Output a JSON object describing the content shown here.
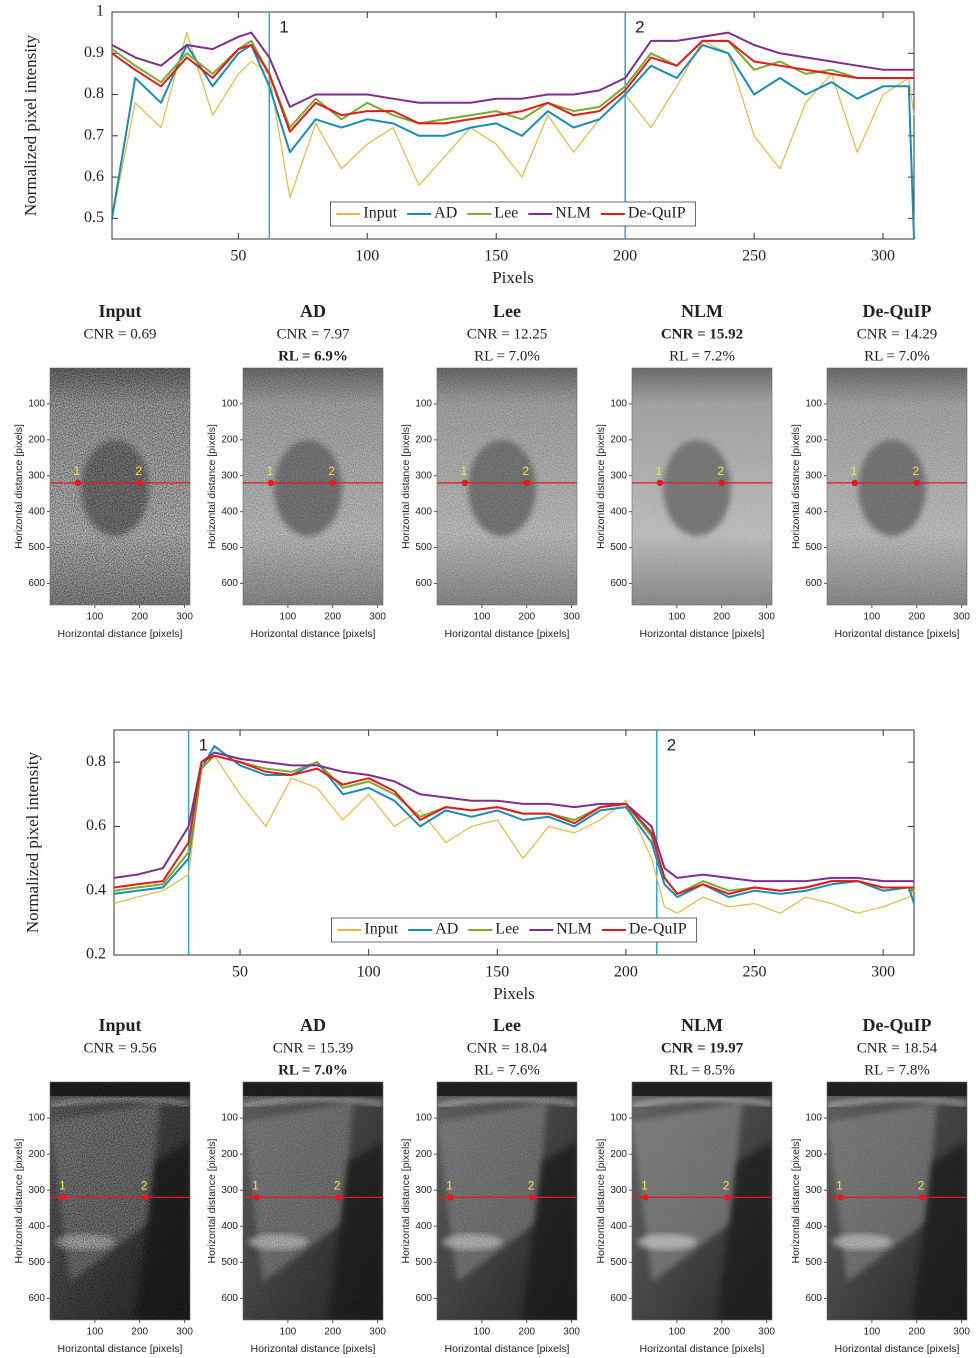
{
  "chart_data": [
    {
      "type": "line",
      "ylabel": "Normalized pixel intensity",
      "xlabel": "Pixels",
      "x": [
        1,
        10,
        20,
        30,
        40,
        50,
        55,
        62,
        70,
        80,
        90,
        100,
        110,
        120,
        130,
        140,
        150,
        160,
        170,
        180,
        190,
        200,
        210,
        220,
        230,
        240,
        250,
        260,
        270,
        280,
        290,
        300,
        310,
        312
      ],
      "series": [
        {
          "name": "Input",
          "color": "#e3b943",
          "values": [
            0.5,
            0.78,
            0.72,
            0.95,
            0.75,
            0.85,
            0.88,
            0.85,
            0.55,
            0.73,
            0.62,
            0.68,
            0.72,
            0.58,
            0.65,
            0.72,
            0.68,
            0.6,
            0.75,
            0.66,
            0.74,
            0.8,
            0.72,
            0.82,
            0.93,
            0.9,
            0.7,
            0.62,
            0.78,
            0.85,
            0.66,
            0.8,
            0.84,
            0.75
          ]
        },
        {
          "name": "AD",
          "color": "#1a8cb5",
          "values": [
            0.5,
            0.84,
            0.78,
            0.92,
            0.82,
            0.9,
            0.92,
            0.82,
            0.66,
            0.74,
            0.72,
            0.74,
            0.73,
            0.7,
            0.7,
            0.72,
            0.73,
            0.7,
            0.76,
            0.72,
            0.74,
            0.8,
            0.87,
            0.84,
            0.92,
            0.9,
            0.8,
            0.84,
            0.8,
            0.83,
            0.79,
            0.82,
            0.82,
            0.45
          ]
        },
        {
          "name": "Lee",
          "color": "#77ac30",
          "values": [
            0.91,
            0.87,
            0.83,
            0.9,
            0.85,
            0.91,
            0.93,
            0.85,
            0.72,
            0.79,
            0.74,
            0.78,
            0.75,
            0.73,
            0.74,
            0.75,
            0.76,
            0.74,
            0.78,
            0.76,
            0.77,
            0.82,
            0.9,
            0.87,
            0.93,
            0.93,
            0.86,
            0.88,
            0.85,
            0.86,
            0.84,
            0.84,
            0.84,
            0.84
          ]
        },
        {
          "name": "NLM",
          "color": "#7e2f8e",
          "values": [
            0.92,
            0.89,
            0.87,
            0.92,
            0.91,
            0.94,
            0.95,
            0.89,
            0.77,
            0.8,
            0.8,
            0.8,
            0.79,
            0.78,
            0.78,
            0.78,
            0.79,
            0.79,
            0.8,
            0.8,
            0.81,
            0.84,
            0.93,
            0.93,
            0.94,
            0.95,
            0.92,
            0.9,
            0.89,
            0.88,
            0.87,
            0.86,
            0.86,
            0.86
          ]
        },
        {
          "name": "De-QuIP",
          "color": "#e41a1c",
          "values": [
            0.9,
            0.86,
            0.82,
            0.89,
            0.84,
            0.91,
            0.92,
            0.85,
            0.71,
            0.78,
            0.75,
            0.76,
            0.76,
            0.73,
            0.73,
            0.74,
            0.75,
            0.76,
            0.78,
            0.75,
            0.76,
            0.81,
            0.89,
            0.87,
            0.93,
            0.93,
            0.88,
            0.87,
            0.86,
            0.85,
            0.84,
            0.84,
            0.84,
            0.84
          ]
        }
      ],
      "xlim": [
        1,
        312
      ],
      "xticks": [
        50,
        100,
        150,
        200,
        250,
        300
      ],
      "ylim": [
        0.45,
        1
      ],
      "yticks": [
        0.5,
        0.6,
        0.7,
        0.8,
        0.9,
        1
      ],
      "markers": [
        {
          "x": 62,
          "label": "1"
        },
        {
          "x": 200,
          "label": "2"
        }
      ],
      "marker_color": "#29a8e0",
      "legend": "lower center"
    },
    {
      "type": "line",
      "ylabel": "Normalized pixel intensity",
      "xlabel": "Pixels",
      "x": [
        1,
        10,
        20,
        30,
        35,
        40,
        50,
        60,
        70,
        80,
        90,
        100,
        110,
        120,
        130,
        140,
        150,
        160,
        170,
        180,
        190,
        200,
        210,
        215,
        220,
        230,
        240,
        250,
        260,
        270,
        280,
        290,
        300,
        310,
        312
      ],
      "series": [
        {
          "name": "Input",
          "color": "#e3b943",
          "values": [
            0.36,
            0.38,
            0.4,
            0.45,
            0.78,
            0.82,
            0.7,
            0.6,
            0.75,
            0.72,
            0.62,
            0.7,
            0.6,
            0.65,
            0.55,
            0.6,
            0.62,
            0.5,
            0.6,
            0.58,
            0.62,
            0.68,
            0.5,
            0.35,
            0.33,
            0.38,
            0.35,
            0.36,
            0.33,
            0.38,
            0.36,
            0.33,
            0.35,
            0.38,
            0.4
          ]
        },
        {
          "name": "AD",
          "color": "#1a8cb5",
          "values": [
            0.39,
            0.4,
            0.41,
            0.5,
            0.78,
            0.85,
            0.79,
            0.76,
            0.76,
            0.8,
            0.7,
            0.72,
            0.68,
            0.6,
            0.65,
            0.63,
            0.65,
            0.62,
            0.63,
            0.6,
            0.65,
            0.66,
            0.55,
            0.42,
            0.38,
            0.42,
            0.38,
            0.4,
            0.39,
            0.4,
            0.42,
            0.43,
            0.4,
            0.41,
            0.36
          ]
        },
        {
          "name": "Lee",
          "color": "#77ac30",
          "values": [
            0.4,
            0.41,
            0.42,
            0.52,
            0.78,
            0.82,
            0.8,
            0.78,
            0.77,
            0.8,
            0.72,
            0.74,
            0.7,
            0.63,
            0.66,
            0.65,
            0.66,
            0.64,
            0.64,
            0.62,
            0.66,
            0.67,
            0.57,
            0.44,
            0.39,
            0.43,
            0.4,
            0.41,
            0.4,
            0.41,
            0.43,
            0.43,
            0.41,
            0.41,
            0.4
          ]
        },
        {
          "name": "NLM",
          "color": "#7e2f8e",
          "values": [
            0.44,
            0.45,
            0.47,
            0.6,
            0.8,
            0.83,
            0.81,
            0.8,
            0.79,
            0.79,
            0.77,
            0.76,
            0.74,
            0.7,
            0.69,
            0.68,
            0.68,
            0.67,
            0.67,
            0.66,
            0.67,
            0.67,
            0.6,
            0.47,
            0.44,
            0.45,
            0.44,
            0.43,
            0.43,
            0.43,
            0.44,
            0.44,
            0.43,
            0.43,
            0.43
          ]
        },
        {
          "name": "De-QuIP",
          "color": "#e41a1c",
          "values": [
            0.41,
            0.42,
            0.43,
            0.55,
            0.8,
            0.82,
            0.8,
            0.77,
            0.76,
            0.78,
            0.73,
            0.75,
            0.71,
            0.62,
            0.66,
            0.65,
            0.66,
            0.64,
            0.64,
            0.61,
            0.66,
            0.67,
            0.58,
            0.44,
            0.39,
            0.42,
            0.39,
            0.41,
            0.4,
            0.41,
            0.43,
            0.43,
            0.41,
            0.41,
            0.41
          ]
        }
      ],
      "xlim": [
        1,
        312
      ],
      "xticks": [
        50,
        100,
        150,
        200,
        250,
        300
      ],
      "ylim": [
        0.2,
        0.9
      ],
      "yticks": [
        0.2,
        0.4,
        0.6,
        0.8
      ],
      "markers": [
        {
          "x": 30,
          "label": "1"
        },
        {
          "x": 212,
          "label": "2"
        }
      ],
      "marker_color": "#29a8e0",
      "legend": "lower center"
    }
  ],
  "image_axes": {
    "xlabel": "Horizontal distance [pixels]",
    "ylabel": "Horizontal distance [pixels]",
    "xlim": [
      0,
      312
    ],
    "ylim": [
      0,
      660
    ],
    "xticks": [
      100,
      200,
      300
    ],
    "yticks": [
      100,
      200,
      300,
      400,
      500,
      600
    ],
    "profile_row": 320
  },
  "image_panels": [
    {
      "items": [
        {
          "title": "Input",
          "cnr": "CNR = 0.69"
        },
        {
          "title": "AD",
          "cnr": "CNR = 7.97",
          "rl": "RL = 6.9%",
          "bold_rl": true
        },
        {
          "title": "Lee",
          "cnr": "CNR = 12.25",
          "rl": "RL = 7.0%"
        },
        {
          "title": "NLM",
          "cnr": "CNR = 15.92",
          "rl": "RL = 7.2%",
          "bold_cnr": true
        },
        {
          "title": "De-QuIP",
          "cnr": "CNR = 14.29",
          "rl": "RL = 7.0%"
        }
      ]
    },
    {
      "items": [
        {
          "title": "Input",
          "cnr": "CNR = 9.56"
        },
        {
          "title": "AD",
          "cnr": "CNR = 15.39",
          "rl": "RL = 7.0%",
          "bold_rl": true
        },
        {
          "title": "Lee",
          "cnr": "CNR = 18.04",
          "rl": "RL = 7.6%"
        },
        {
          "title": "NLM",
          "cnr": "CNR = 19.97",
          "rl": "RL = 8.5%",
          "bold_cnr": true
        },
        {
          "title": "De-QuIP",
          "cnr": "CNR = 18.54",
          "rl": "RL = 7.8%"
        }
      ]
    }
  ]
}
